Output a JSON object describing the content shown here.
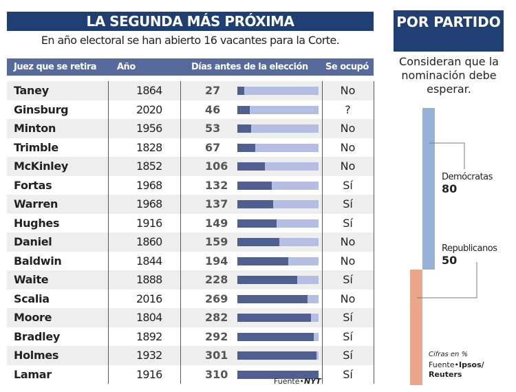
{
  "title": "LA SEGUNDA MÁS PRÓXIMA",
  "subtitle": "En año electoral se han abierto 16 vacantes para la Corte.",
  "headers": [
    "Juez que se retira",
    "Año",
    "Días antes de la elección",
    "Se ocupó"
  ],
  "chart_data": [
    {
      "type": "table",
      "max_days": 310,
      "rows": [
        {
          "name": "Taney",
          "year": "1864",
          "days": 27,
          "filled": "No"
        },
        {
          "name": "Ginsburg",
          "year": "2020",
          "days": 46,
          "filled": "?"
        },
        {
          "name": "Minton",
          "year": "1956",
          "days": 53,
          "filled": "No"
        },
        {
          "name": "Trimble",
          "year": "1828",
          "days": 67,
          "filled": "No"
        },
        {
          "name": "McKinley",
          "year": "1852",
          "days": 106,
          "filled": "No"
        },
        {
          "name": "Fortas",
          "year": "1968",
          "days": 132,
          "filled": "Sí"
        },
        {
          "name": "Warren",
          "year": "1968",
          "days": 137,
          "filled": "Sí"
        },
        {
          "name": "Hughes",
          "year": "1916",
          "days": 149,
          "filled": "Sí"
        },
        {
          "name": "Daniel",
          "year": "1860",
          "days": 159,
          "filled": "No"
        },
        {
          "name": "Baldwin",
          "year": "1844",
          "days": 194,
          "filled": "No"
        },
        {
          "name": "Waite",
          "year": "1888",
          "days": 228,
          "filled": "Sí"
        },
        {
          "name": "Scalia",
          "year": "2016",
          "days": 269,
          "filled": "No"
        },
        {
          "name": "Moore",
          "year": "1804",
          "days": 282,
          "filled": "Sí"
        },
        {
          "name": "Bradley",
          "year": "1892",
          "days": 292,
          "filled": "Sí"
        },
        {
          "name": "Holmes",
          "year": "1932",
          "days": 301,
          "filled": "Sí"
        },
        {
          "name": "Lamar",
          "year": "1916",
          "days": 310,
          "filled": "Sí"
        }
      ],
      "colors": {
        "bar": "#4f5f8f",
        "track": "#b5bde3"
      }
    },
    {
      "type": "bar",
      "title": "POR PARTIDO",
      "subtitle": "Consideran que la nominación debe esperar.",
      "series": [
        {
          "name": "Demócratas",
          "value": 80,
          "color": "#95b1d6"
        },
        {
          "name": "Republicanos",
          "value": 50,
          "color": "#eba78b"
        }
      ],
      "note": "Cifras en %"
    }
  ],
  "source_left": {
    "label": "Fuente•",
    "name": "NYT"
  },
  "source_right": {
    "label": "Fuente•",
    "name": "Ipsos/ Reuters"
  }
}
